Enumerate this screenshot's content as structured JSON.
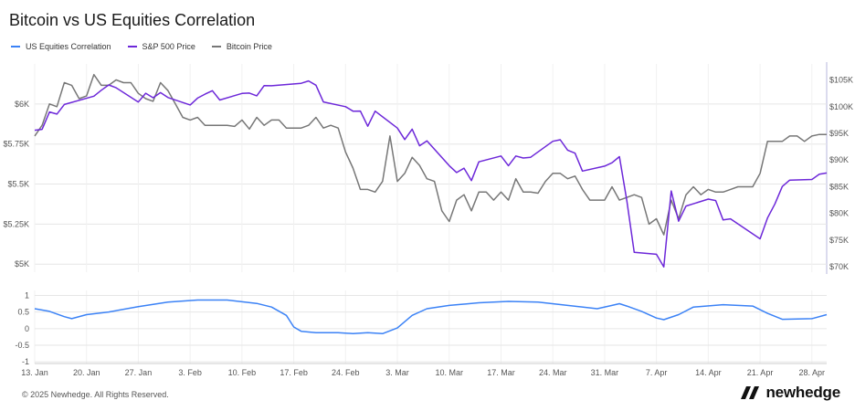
{
  "title": "Bitcoin vs US Equities Correlation",
  "footer": "© 2025 Newhedge. All Rights Reserved.",
  "brand": "newhedge",
  "colors": {
    "corr": "#3b82f6",
    "spx": "#6d28d9",
    "btc": "#777777",
    "grid": "#e6e6e6"
  },
  "legend": [
    {
      "name": "US Equities Correlation",
      "color": "#3b82f6"
    },
    {
      "name": "S&P 500 Price",
      "color": "#6d28d9"
    },
    {
      "name": "Bitcoin Price",
      "color": "#777777"
    }
  ],
  "chart_data": [
    {
      "type": "line",
      "x_ticks": [
        "13. Jan",
        "20. Jan",
        "27. Jan",
        "3. Feb",
        "10. Feb",
        "17. Feb",
        "24. Feb",
        "3. Mar",
        "10. Mar",
        "17. Mar",
        "24. Mar",
        "31. Mar",
        "7. Apr",
        "14. Apr",
        "21. Apr",
        "28. Apr"
      ],
      "x_range": [
        "2025-01-13",
        "2025-04-30"
      ],
      "left_axis": {
        "ticks": [
          "$5K",
          "$5.25K",
          "$5.5K",
          "$5.75K",
          "$6K"
        ],
        "min": 4950,
        "max": 6250
      },
      "right_axis": {
        "ticks": [
          "$70K",
          "$75K",
          "$80K",
          "$85K",
          "$90K",
          "$95K",
          "$100K",
          "$105K"
        ],
        "min": 69000,
        "max": 108000
      },
      "series": [
        {
          "name": "S&P 500 Price",
          "axis": "left",
          "points": [
            [
              "2025-01-13",
              5836
            ],
            [
              "2025-01-14",
              5842
            ],
            [
              "2025-01-15",
              5950
            ],
            [
              "2025-01-16",
              5937
            ],
            [
              "2025-01-17",
              5997
            ],
            [
              "2025-01-21",
              6049
            ],
            [
              "2025-01-22",
              6086
            ],
            [
              "2025-01-23",
              6119
            ],
            [
              "2025-01-24",
              6101
            ],
            [
              "2025-01-27",
              6012
            ],
            [
              "2025-01-28",
              6067
            ],
            [
              "2025-01-29",
              6039
            ],
            [
              "2025-01-30",
              6071
            ],
            [
              "2025-01-31",
              6040
            ],
            [
              "2025-02-03",
              5994
            ],
            [
              "2025-02-04",
              6037
            ],
            [
              "2025-02-05",
              6061
            ],
            [
              "2025-02-06",
              6083
            ],
            [
              "2025-02-07",
              6025
            ],
            [
              "2025-02-10",
              6066
            ],
            [
              "2025-02-11",
              6068
            ],
            [
              "2025-02-12",
              6051
            ],
            [
              "2025-02-13",
              6115
            ],
            [
              "2025-02-14",
              6114
            ],
            [
              "2025-02-18",
              6129
            ],
            [
              "2025-02-19",
              6144
            ],
            [
              "2025-02-20",
              6117
            ],
            [
              "2025-02-21",
              6013
            ],
            [
              "2025-02-24",
              5983
            ],
            [
              "2025-02-25",
              5955
            ],
            [
              "2025-02-26",
              5956
            ],
            [
              "2025-02-27",
              5861
            ],
            [
              "2025-02-28",
              5955
            ],
            [
              "2025-03-03",
              5850
            ],
            [
              "2025-03-04",
              5778
            ],
            [
              "2025-03-05",
              5843
            ],
            [
              "2025-03-06",
              5739
            ],
            [
              "2025-03-07",
              5770
            ],
            [
              "2025-03-10",
              5615
            ],
            [
              "2025-03-11",
              5572
            ],
            [
              "2025-03-12",
              5599
            ],
            [
              "2025-03-13",
              5522
            ],
            [
              "2025-03-14",
              5639
            ],
            [
              "2025-03-17",
              5675
            ],
            [
              "2025-03-18",
              5615
            ],
            [
              "2025-03-19",
              5675
            ],
            [
              "2025-03-20",
              5663
            ],
            [
              "2025-03-21",
              5667
            ],
            [
              "2025-03-24",
              5767
            ],
            [
              "2025-03-25",
              5777
            ],
            [
              "2025-03-26",
              5712
            ],
            [
              "2025-03-27",
              5693
            ],
            [
              "2025-03-28",
              5581
            ],
            [
              "2025-03-31",
              5612
            ],
            [
              "2025-04-01",
              5633
            ],
            [
              "2025-04-02",
              5671
            ],
            [
              "2025-04-03",
              5397
            ],
            [
              "2025-04-04",
              5074
            ],
            [
              "2025-04-07",
              5062
            ],
            [
              "2025-04-08",
              4983
            ],
            [
              "2025-04-09",
              5457
            ],
            [
              "2025-04-10",
              5268
            ],
            [
              "2025-04-11",
              5363
            ],
            [
              "2025-04-14",
              5406
            ],
            [
              "2025-04-15",
              5397
            ],
            [
              "2025-04-16",
              5276
            ],
            [
              "2025-04-17",
              5283
            ],
            [
              "2025-04-21",
              5158
            ],
            [
              "2025-04-22",
              5288
            ],
            [
              "2025-04-23",
              5376
            ],
            [
              "2025-04-24",
              5485
            ],
            [
              "2025-04-25",
              5525
            ],
            [
              "2025-04-28",
              5529
            ],
            [
              "2025-04-29",
              5561
            ],
            [
              "2025-04-30",
              5569
            ]
          ]
        },
        {
          "name": "Bitcoin Price",
          "axis": "right",
          "points": [
            [
              "2025-01-13",
              94500
            ],
            [
              "2025-01-14",
              96500
            ],
            [
              "2025-01-15",
              100500
            ],
            [
              "2025-01-16",
              100000
            ],
            [
              "2025-01-17",
              104500
            ],
            [
              "2025-01-18",
              104000
            ],
            [
              "2025-01-19",
              101500
            ],
            [
              "2025-01-20",
              102000
            ],
            [
              "2025-01-21",
              106000
            ],
            [
              "2025-01-22",
              104000
            ],
            [
              "2025-01-23",
              104000
            ],
            [
              "2025-01-24",
              105000
            ],
            [
              "2025-01-25",
              104500
            ],
            [
              "2025-01-26",
              104500
            ],
            [
              "2025-01-27",
              102500
            ],
            [
              "2025-01-28",
              101500
            ],
            [
              "2025-01-29",
              101000
            ],
            [
              "2025-01-30",
              104500
            ],
            [
              "2025-01-31",
              103000
            ],
            [
              "2025-02-01",
              100500
            ],
            [
              "2025-02-02",
              98000
            ],
            [
              "2025-02-03",
              97500
            ],
            [
              "2025-02-04",
              98000
            ],
            [
              "2025-02-05",
              96500
            ],
            [
              "2025-02-06",
              96500
            ],
            [
              "2025-02-07",
              96500
            ],
            [
              "2025-02-08",
              96500
            ],
            [
              "2025-02-09",
              96300
            ],
            [
              "2025-02-10",
              97500
            ],
            [
              "2025-02-11",
              95800
            ],
            [
              "2025-02-12",
              98000
            ],
            [
              "2025-02-13",
              96500
            ],
            [
              "2025-02-14",
              97500
            ],
            [
              "2025-02-15",
              97500
            ],
            [
              "2025-02-16",
              96000
            ],
            [
              "2025-02-17",
              96000
            ],
            [
              "2025-02-18",
              96000
            ],
            [
              "2025-02-19",
              96500
            ],
            [
              "2025-02-20",
              98000
            ],
            [
              "2025-02-21",
              96000
            ],
            [
              "2025-02-22",
              96500
            ],
            [
              "2025-02-23",
              96000
            ],
            [
              "2025-02-24",
              91500
            ],
            [
              "2025-02-25",
              88500
            ],
            [
              "2025-02-26",
              84500
            ],
            [
              "2025-02-27",
              84500
            ],
            [
              "2025-02-28",
              84000
            ],
            [
              "2025-03-01",
              86000
            ],
            [
              "2025-03-02",
              94500
            ],
            [
              "2025-03-03",
              86000
            ],
            [
              "2025-03-04",
              87500
            ],
            [
              "2025-03-05",
              90500
            ],
            [
              "2025-03-06",
              89000
            ],
            [
              "2025-03-07",
              86500
            ],
            [
              "2025-03-08",
              86000
            ],
            [
              "2025-03-09",
              80500
            ],
            [
              "2025-03-10",
              78500
            ],
            [
              "2025-03-11",
              82500
            ],
            [
              "2025-03-12",
              83500
            ],
            [
              "2025-03-13",
              80500
            ],
            [
              "2025-03-14",
              84000
            ],
            [
              "2025-03-15",
              84000
            ],
            [
              "2025-03-16",
              82500
            ],
            [
              "2025-03-17",
              84000
            ],
            [
              "2025-03-18",
              82500
            ],
            [
              "2025-03-19",
              86500
            ],
            [
              "2025-03-20",
              84000
            ],
            [
              "2025-03-21",
              84000
            ],
            [
              "2025-03-22",
              83800
            ],
            [
              "2025-03-23",
              86000
            ],
            [
              "2025-03-24",
              87500
            ],
            [
              "2025-03-25",
              87500
            ],
            [
              "2025-03-26",
              86500
            ],
            [
              "2025-03-27",
              87000
            ],
            [
              "2025-03-28",
              84500
            ],
            [
              "2025-03-29",
              82500
            ],
            [
              "2025-03-30",
              82500
            ],
            [
              "2025-03-31",
              82500
            ],
            [
              "2025-04-01",
              85000
            ],
            [
              "2025-04-02",
              82500
            ],
            [
              "2025-04-03",
              83000
            ],
            [
              "2025-04-04",
              83500
            ],
            [
              "2025-04-05",
              83000
            ],
            [
              "2025-04-06",
              78000
            ],
            [
              "2025-04-07",
              79000
            ],
            [
              "2025-04-08",
              76000
            ],
            [
              "2025-04-09",
              82500
            ],
            [
              "2025-04-10",
              79000
            ],
            [
              "2025-04-11",
              83500
            ],
            [
              "2025-04-12",
              85000
            ],
            [
              "2025-04-13",
              83500
            ],
            [
              "2025-04-14",
              84500
            ],
            [
              "2025-04-15",
              84000
            ],
            [
              "2025-04-16",
              84000
            ],
            [
              "2025-04-17",
              84500
            ],
            [
              "2025-04-18",
              85000
            ],
            [
              "2025-04-19",
              85000
            ],
            [
              "2025-04-20",
              85000
            ],
            [
              "2025-04-21",
              87500
            ],
            [
              "2025-04-22",
              93500
            ],
            [
              "2025-04-23",
              93500
            ],
            [
              "2025-04-24",
              93500
            ],
            [
              "2025-04-25",
              94500
            ],
            [
              "2025-04-26",
              94500
            ],
            [
              "2025-04-27",
              93500
            ],
            [
              "2025-04-28",
              94500
            ],
            [
              "2025-04-29",
              94800
            ],
            [
              "2025-04-30",
              94800
            ]
          ]
        },
        {
          "name": "US Equities Correlation",
          "axis": "corr",
          "points": [
            [
              "2025-01-13",
              0.6
            ],
            [
              "2025-01-15",
              0.52
            ],
            [
              "2025-01-17",
              0.36
            ],
            [
              "2025-01-18",
              0.3
            ],
            [
              "2025-01-20",
              0.42
            ],
            [
              "2025-01-23",
              0.5
            ],
            [
              "2025-01-27",
              0.66
            ],
            [
              "2025-01-31",
              0.8
            ],
            [
              "2025-02-04",
              0.86
            ],
            [
              "2025-02-08",
              0.86
            ],
            [
              "2025-02-12",
              0.76
            ],
            [
              "2025-02-14",
              0.65
            ],
            [
              "2025-02-16",
              0.4
            ],
            [
              "2025-02-17",
              0.05
            ],
            [
              "2025-02-18",
              -0.08
            ],
            [
              "2025-02-20",
              -0.12
            ],
            [
              "2025-02-23",
              -0.12
            ],
            [
              "2025-02-25",
              -0.15
            ],
            [
              "2025-02-27",
              -0.12
            ],
            [
              "2025-03-01",
              -0.15
            ],
            [
              "2025-03-03",
              0.02
            ],
            [
              "2025-03-05",
              0.4
            ],
            [
              "2025-03-07",
              0.6
            ],
            [
              "2025-03-10",
              0.7
            ],
            [
              "2025-03-14",
              0.78
            ],
            [
              "2025-03-18",
              0.82
            ],
            [
              "2025-03-22",
              0.8
            ],
            [
              "2025-03-26",
              0.7
            ],
            [
              "2025-03-30",
              0.6
            ],
            [
              "2025-04-01",
              0.7
            ],
            [
              "2025-04-02",
              0.75
            ],
            [
              "2025-04-03",
              0.68
            ],
            [
              "2025-04-05",
              0.52
            ],
            [
              "2025-04-07",
              0.32
            ],
            [
              "2025-04-08",
              0.27
            ],
            [
              "2025-04-10",
              0.42
            ],
            [
              "2025-04-12",
              0.65
            ],
            [
              "2025-04-16",
              0.72
            ],
            [
              "2025-04-20",
              0.68
            ],
            [
              "2025-04-22",
              0.46
            ],
            [
              "2025-04-24",
              0.28
            ],
            [
              "2025-04-28",
              0.3
            ],
            [
              "2025-04-30",
              0.42
            ]
          ]
        }
      ]
    },
    {
      "type": "line",
      "y_ticks": [
        "1",
        "0.5",
        "0",
        "-0.5",
        "-1"
      ],
      "ylim": [
        -1.05,
        1.15
      ],
      "series": [
        {
          "name": "US Equities Correlation"
        }
      ]
    }
  ]
}
